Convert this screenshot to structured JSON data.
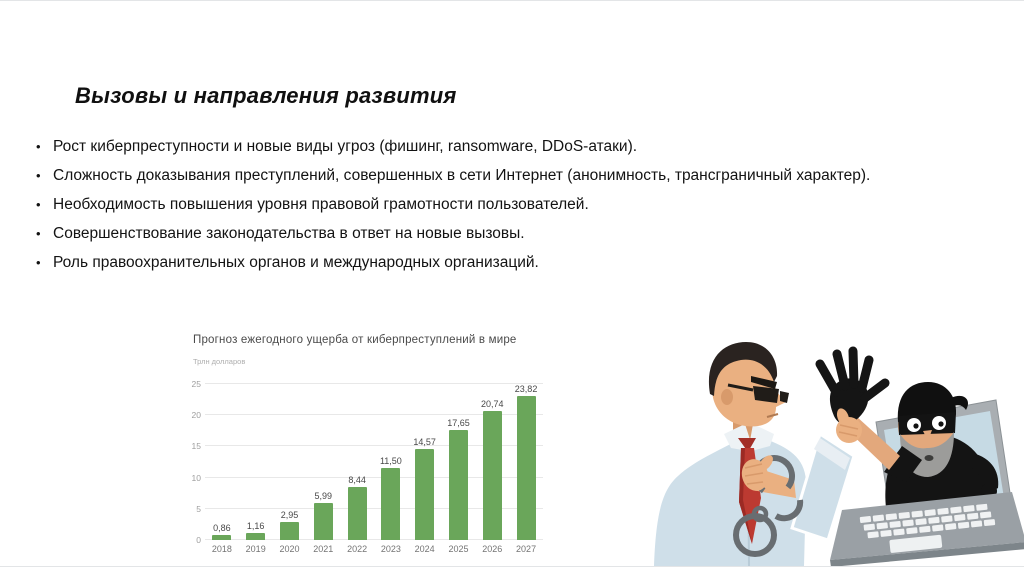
{
  "slide": {
    "title": "Вызовы и направления развития",
    "bullets": [
      "Рост киберпреступности и новые виды угроз (фишинг, ransomware, DDoS-атаки).",
      "Сложность доказывания преступлений, совершенных в сети Интернет (анонимность, трансграничный характер).",
      "Необходимость повышения уровня правовой грамотности пользователей.",
      "Совершенствование законодательства в ответ на новые вызовы.",
      "Роль правоохранительных органов и международных организаций."
    ]
  },
  "chart_data": {
    "type": "bar",
    "title": "Прогноз ежегодного ущерба от киберпреступлений в мире",
    "subtitle": "Трлн долларов",
    "ylabel": "Трлн долларов",
    "xlabel": "",
    "categories": [
      "2018",
      "2019",
      "2020",
      "2021",
      "2022",
      "2023",
      "2024",
      "2025",
      "2026",
      "2027"
    ],
    "values": [
      0.86,
      1.16,
      2.95,
      5.99,
      8.44,
      11.5,
      14.57,
      17.65,
      20.74,
      23.82
    ],
    "value_labels": [
      "0,86",
      "1,16",
      "2,95",
      "5,99",
      "8,44",
      "11,50",
      "14,57",
      "17,65",
      "20,74",
      "23,82"
    ],
    "ylim": [
      0,
      25
    ],
    "yticks": [
      0,
      5,
      10,
      15,
      20,
      25
    ],
    "grid": true,
    "legend": false,
    "bar_color": "#6aa65a",
    "grid_color": "#e8e8e8"
  },
  "illustration": {
    "description": "Businessman with handcuffs catching the gloved hand of a masked cybercriminal reaching out of a laptop screen",
    "colors": {
      "shirt": "#cfdfe9",
      "tie": "#bc3a31",
      "skin": "#eab081",
      "thief_black": "#141414",
      "beard": "#9c9c9a",
      "laptop_frame": "#a9aeb2",
      "laptop_base": "#9aa0a5",
      "screen": "#c6dae4",
      "handcuffs": "#686d71"
    }
  }
}
